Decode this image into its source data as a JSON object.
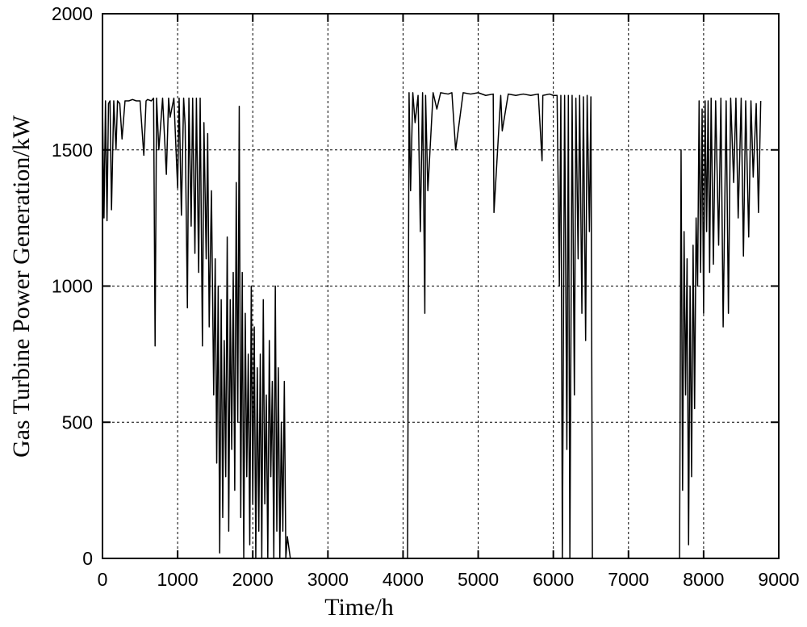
{
  "chart_data": {
    "type": "line",
    "x_label": "Time/h",
    "y_label": "Gas Turbine Power Generation/kW",
    "xlim": [
      0,
      9000
    ],
    "xticks": [
      0,
      1000,
      2000,
      3000,
      4000,
      5000,
      6000,
      7000,
      8000,
      9000
    ],
    "ylim": [
      0,
      2000
    ],
    "yticks": [
      0,
      500,
      1000,
      1500,
      2000
    ],
    "grid": true,
    "x": [
      0,
      20,
      40,
      60,
      80,
      100,
      120,
      150,
      180,
      200,
      230,
      260,
      300,
      350,
      400,
      450,
      500,
      550,
      580,
      600,
      650,
      680,
      700,
      720,
      750,
      800,
      850,
      880,
      900,
      950,
      1000,
      1020,
      1050,
      1080,
      1100,
      1130,
      1150,
      1180,
      1200,
      1230,
      1250,
      1280,
      1300,
      1330,
      1350,
      1380,
      1400,
      1420,
      1450,
      1480,
      1500,
      1520,
      1540,
      1560,
      1580,
      1600,
      1620,
      1640,
      1660,
      1680,
      1700,
      1720,
      1740,
      1760,
      1780,
      1800,
      1820,
      1840,
      1860,
      1880,
      1900,
      1920,
      1940,
      1960,
      1980,
      2000,
      2020,
      2040,
      2060,
      2080,
      2100,
      2120,
      2140,
      2160,
      2180,
      2200,
      2220,
      2240,
      2260,
      2280,
      2300,
      2320,
      2340,
      2360,
      2380,
      2400,
      2420,
      2440,
      2460,
      2500,
      4060,
      4080,
      4100,
      4130,
      4160,
      4200,
      4230,
      4260,
      4290,
      4300,
      4330,
      4400,
      4450,
      4500,
      4600,
      4650,
      4700,
      4800,
      4900,
      5000,
      5100,
      5200,
      5210,
      5300,
      5320,
      5400,
      5500,
      5600,
      5700,
      5800,
      5850,
      5860,
      5950,
      6000,
      6050,
      6080,
      6100,
      6120,
      6150,
      6180,
      6200,
      6220,
      6250,
      6280,
      6300,
      6330,
      6350,
      6380,
      6400,
      6430,
      6450,
      6480,
      6500,
      6520,
      6540,
      7680,
      7700,
      7720,
      7740,
      7760,
      7780,
      7800,
      7820,
      7840,
      7860,
      7880,
      7900,
      7920,
      7940,
      7960,
      7980,
      8000,
      8020,
      8040,
      8060,
      8080,
      8100,
      8130,
      8160,
      8200,
      8230,
      8260,
      8300,
      8330,
      8360,
      8400,
      8430,
      8460,
      8500,
      8530,
      8560,
      8600,
      8630,
      8660,
      8700,
      8730,
      8760
    ],
    "series": [
      {
        "color": "#000000",
        "values": [
          1680,
          1250,
          1680,
          1240,
          1670,
          1680,
          1280,
          1680,
          1500,
          1680,
          1670,
          1540,
          1680,
          1680,
          1685,
          1680,
          1680,
          1480,
          1680,
          1685,
          1680,
          1690,
          780,
          1690,
          1500,
          1690,
          1410,
          1690,
          1620,
          1690,
          1360,
          1690,
          1260,
          1690,
          1590,
          920,
          1690,
          1220,
          1690,
          1120,
          1690,
          1050,
          1690,
          780,
          1600,
          1100,
          1560,
          850,
          1350,
          600,
          1100,
          350,
          1000,
          20,
          950,
          150,
          800,
          300,
          1180,
          100,
          950,
          400,
          1050,
          250,
          1380,
          500,
          1660,
          150,
          1050,
          0,
          900,
          300,
          750,
          50,
          1000,
          200,
          850,
          0,
          700,
          100,
          750,
          0,
          950,
          200,
          600,
          0,
          800,
          300,
          650,
          0,
          1000,
          100,
          700,
          0,
          500,
          100,
          650,
          0,
          80,
          0,
          0,
          1710,
          1350,
          1710,
          1600,
          1700,
          1200,
          1710,
          900,
          1700,
          1350,
          1710,
          1650,
          1710,
          1705,
          1710,
          1500,
          1710,
          1705,
          1710,
          1700,
          1705,
          1270,
          1700,
          1570,
          1705,
          1700,
          1705,
          1700,
          1705,
          1460,
          1700,
          1705,
          1700,
          1700,
          1000,
          1700,
          0,
          1700,
          400,
          1700,
          0,
          1700,
          600,
          1690,
          1100,
          1700,
          900,
          1695,
          800,
          1700,
          1200,
          1695,
          0,
          0,
          0,
          1500,
          250,
          1200,
          600,
          1100,
          50,
          1000,
          300,
          1150,
          550,
          1250,
          1000,
          1680,
          1050,
          1650,
          900,
          1680,
          1200,
          1680,
          1050,
          1690,
          1080,
          1680,
          1150,
          1690,
          850,
          1680,
          900,
          1690,
          1380,
          1690,
          1250,
          1690,
          1110,
          1680,
          1180,
          1680,
          1400,
          1670,
          1270,
          1680
        ]
      }
    ]
  }
}
